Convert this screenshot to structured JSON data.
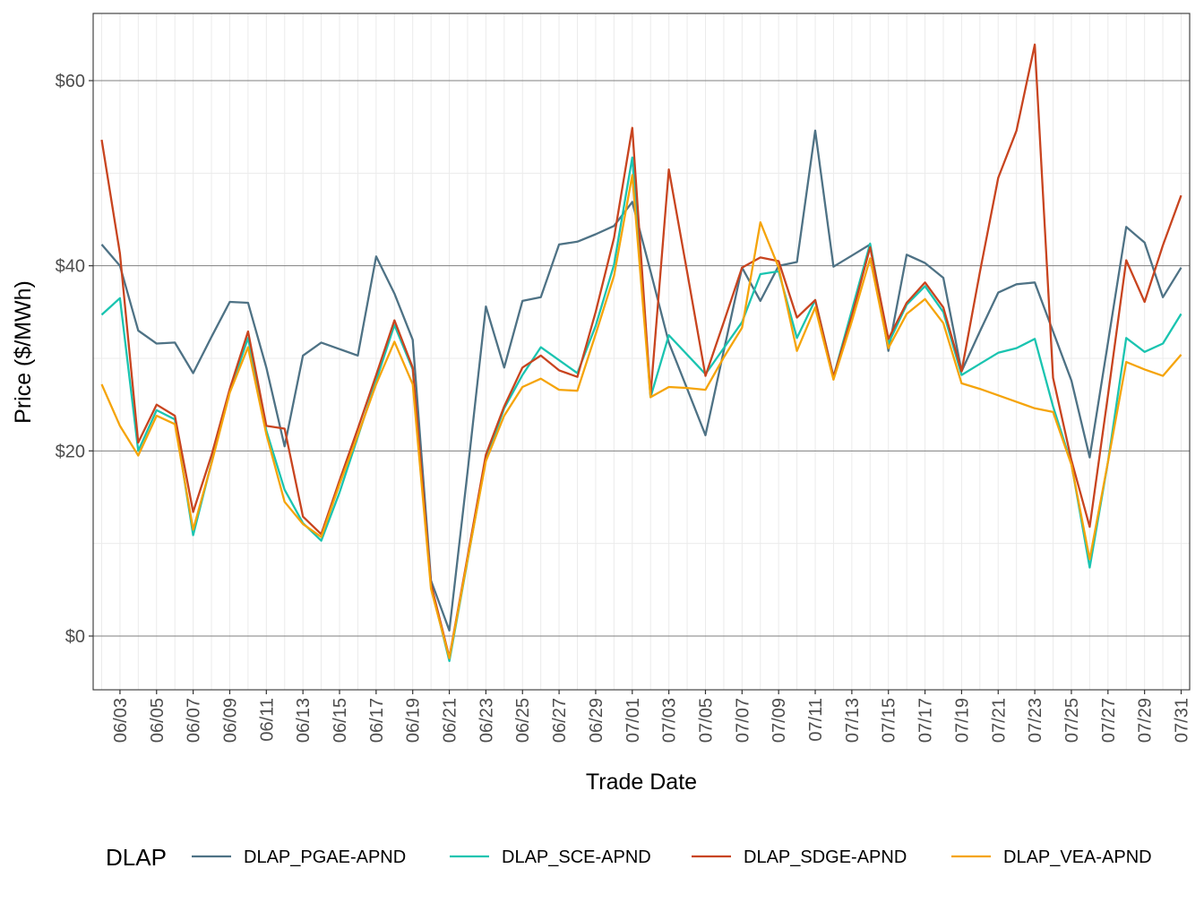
{
  "chart_data": {
    "type": "line",
    "title": "",
    "xlabel": "Trade Date",
    "ylabel": "Price ($/MWh)",
    "ylim": [
      -5.5,
      67.5
    ],
    "y_ticks": [
      0,
      20,
      40,
      60
    ],
    "y_tick_labels": [
      "$0",
      "$20",
      "$40",
      "$60"
    ],
    "x_tick_labels": [
      "06/03",
      "06/05",
      "06/07",
      "06/09",
      "06/11",
      "06/13",
      "06/15",
      "06/17",
      "06/19",
      "06/21",
      "06/23",
      "06/25",
      "06/27",
      "06/29",
      "07/01",
      "07/03",
      "07/05",
      "07/07",
      "07/09",
      "07/11",
      "07/13",
      "07/15",
      "07/17",
      "07/19",
      "07/21",
      "07/23",
      "07/25",
      "07/27",
      "07/29",
      "07/31"
    ],
    "grid": true,
    "legend_title": "DLAP",
    "legend_position": "bottom",
    "x": [
      "06/02",
      "06/03",
      "06/04",
      "06/05",
      "06/06",
      "06/07",
      "06/08",
      "06/09",
      "06/10",
      "06/11",
      "06/12",
      "06/13",
      "06/14",
      "06/15",
      "06/16",
      "06/17",
      "06/18",
      "06/19",
      "06/20",
      "06/21",
      "06/22",
      "06/23",
      "06/24",
      "06/25",
      "06/26",
      "06/27",
      "06/28",
      "06/29",
      "06/30",
      "07/01",
      "07/02",
      "07/03",
      "07/04",
      "07/05",
      "07/06",
      "07/07",
      "07/08",
      "07/09",
      "07/10",
      "07/11",
      "07/12",
      "07/13",
      "07/14",
      "07/15",
      "07/16",
      "07/17",
      "07/18",
      "07/19",
      "07/20",
      "07/21",
      "07/22",
      "07/23",
      "07/24",
      "07/25",
      "07/26",
      "07/27",
      "07/28",
      "07/29",
      "07/30",
      "07/31"
    ],
    "series": [
      {
        "name": "DLAP_PGAE-APND",
        "color": "#4e7285",
        "values": [
          42.3,
          40.0,
          33.0,
          31.6,
          31.7,
          28.4,
          32.3,
          36.1,
          36.0,
          29.0,
          20.5,
          30.3,
          31.7,
          31.0,
          30.3,
          41.0,
          37.0,
          32.0,
          6.0,
          0.6,
          17.8,
          35.6,
          29.0,
          36.2,
          36.6,
          42.3,
          42.6,
          43.4,
          44.3,
          46.9,
          39.4,
          31.7,
          26.7,
          21.7,
          30.8,
          39.8,
          36.2,
          40.0,
          40.4,
          54.6,
          39.9,
          41.1,
          42.3,
          30.8,
          41.2,
          40.3,
          38.7,
          28.6,
          32.9,
          37.1,
          38.0,
          38.2,
          32.9,
          27.6,
          19.3,
          31.7,
          44.2,
          42.5,
          36.6,
          39.8
        ]
      },
      {
        "name": "DLAP_SCE-APND",
        "color": "#1ac4b0",
        "values": [
          34.7,
          36.5,
          20.0,
          24.4,
          23.4,
          10.9,
          18.7,
          26.4,
          32.2,
          22.2,
          15.8,
          12.2,
          10.3,
          15.5,
          21.5,
          27.6,
          33.6,
          28.8,
          5.4,
          -2.7,
          8.2,
          19.1,
          24.6,
          28.2,
          31.2,
          29.8,
          28.4,
          33.5,
          40.1,
          51.7,
          25.8,
          32.5,
          30.4,
          28.3,
          31.1,
          33.9,
          39.1,
          39.4,
          32.2,
          36.3,
          28.0,
          35.2,
          42.4,
          31.6,
          35.8,
          37.8,
          35.0,
          28.2,
          29.4,
          30.6,
          31.1,
          32.1,
          24.8,
          18.6,
          7.4,
          18.8,
          32.2,
          30.7,
          31.6,
          34.8
        ]
      },
      {
        "name": "DLAP_SDGE-APND",
        "color": "#c8441f",
        "values": [
          53.6,
          41.3,
          20.9,
          25.0,
          23.8,
          13.4,
          19.5,
          26.7,
          32.9,
          22.7,
          22.4,
          12.9,
          11.0,
          16.8,
          22.4,
          28.2,
          34.1,
          29.0,
          5.6,
          -2.3,
          8.6,
          19.6,
          24.8,
          29.0,
          30.3,
          28.7,
          28.0,
          35.0,
          43.0,
          54.9,
          26.0,
          50.4,
          39.3,
          28.1,
          33.9,
          39.8,
          40.9,
          40.5,
          34.4,
          36.3,
          28.0,
          34.6,
          42.0,
          32.1,
          36.0,
          38.2,
          35.5,
          28.6,
          39.3,
          49.5,
          54.6,
          63.9,
          27.9,
          19.0,
          11.8,
          26.0,
          40.6,
          36.1,
          42.2,
          47.6
        ]
      },
      {
        "name": "DLAP_VEA-APND",
        "color": "#f5a40a",
        "values": [
          27.2,
          22.7,
          19.5,
          23.8,
          22.9,
          11.5,
          18.6,
          26.3,
          31.2,
          21.8,
          14.5,
          12.1,
          10.7,
          16.4,
          21.7,
          27.2,
          31.8,
          27.2,
          5.1,
          -2.4,
          8.3,
          18.9,
          23.8,
          26.9,
          27.8,
          26.6,
          26.5,
          32.6,
          38.9,
          49.8,
          25.8,
          26.9,
          26.8,
          26.6,
          30.1,
          33.3,
          44.7,
          39.8,
          30.8,
          35.5,
          27.7,
          34.0,
          40.8,
          31.1,
          34.8,
          36.4,
          33.8,
          27.3,
          26.7,
          26.0,
          25.3,
          24.6,
          24.2,
          18.5,
          8.3,
          18.8,
          29.6,
          28.8,
          28.1,
          30.4
        ]
      }
    ]
  }
}
